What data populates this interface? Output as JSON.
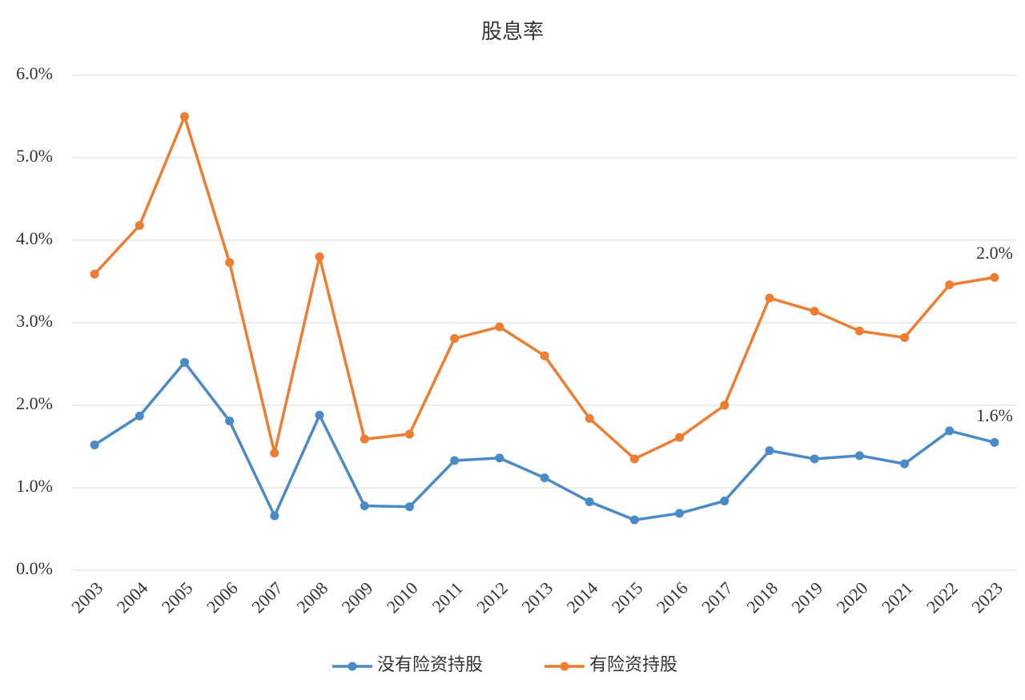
{
  "chart_data": {
    "type": "line",
    "title": "股息率",
    "categories": [
      "2003",
      "2004",
      "2005",
      "2006",
      "2007",
      "2008",
      "2009",
      "2010",
      "2011",
      "2012",
      "2013",
      "2014",
      "2015",
      "2016",
      "2017",
      "2018",
      "2019",
      "2020",
      "2021",
      "2022",
      "2023"
    ],
    "series": [
      {
        "name": "没有险资持股",
        "color": "#4a8ac6",
        "values": [
          1.52,
          1.87,
          2.52,
          1.81,
          0.66,
          1.88,
          0.78,
          0.77,
          1.33,
          1.36,
          1.12,
          0.83,
          0.61,
          0.69,
          0.84,
          1.45,
          1.35,
          1.39,
          1.29,
          1.69,
          1.55
        ]
      },
      {
        "name": "有险资持股",
        "color": "#ed7d31",
        "values": [
          3.59,
          4.18,
          5.5,
          3.73,
          1.42,
          3.8,
          1.59,
          1.65,
          2.81,
          2.95,
          2.6,
          1.84,
          1.35,
          1.61,
          2.0,
          3.3,
          3.14,
          2.9,
          2.82,
          3.46,
          3.55
        ]
      }
    ],
    "annotations": [
      "2.0%",
      "1.6%"
    ],
    "ylim": [
      0,
      6
    ],
    "yticks": [
      {
        "value": 0,
        "label": "0.0%"
      },
      {
        "value": 1,
        "label": "1.0%"
      },
      {
        "value": 2,
        "label": "2.0%"
      },
      {
        "value": 3,
        "label": "3.0%"
      },
      {
        "value": 4,
        "label": "4.0%"
      },
      {
        "value": 5,
        "label": "5.0%"
      },
      {
        "value": 6,
        "label": "6.0%"
      }
    ],
    "grid": true,
    "legend": "bottom"
  }
}
